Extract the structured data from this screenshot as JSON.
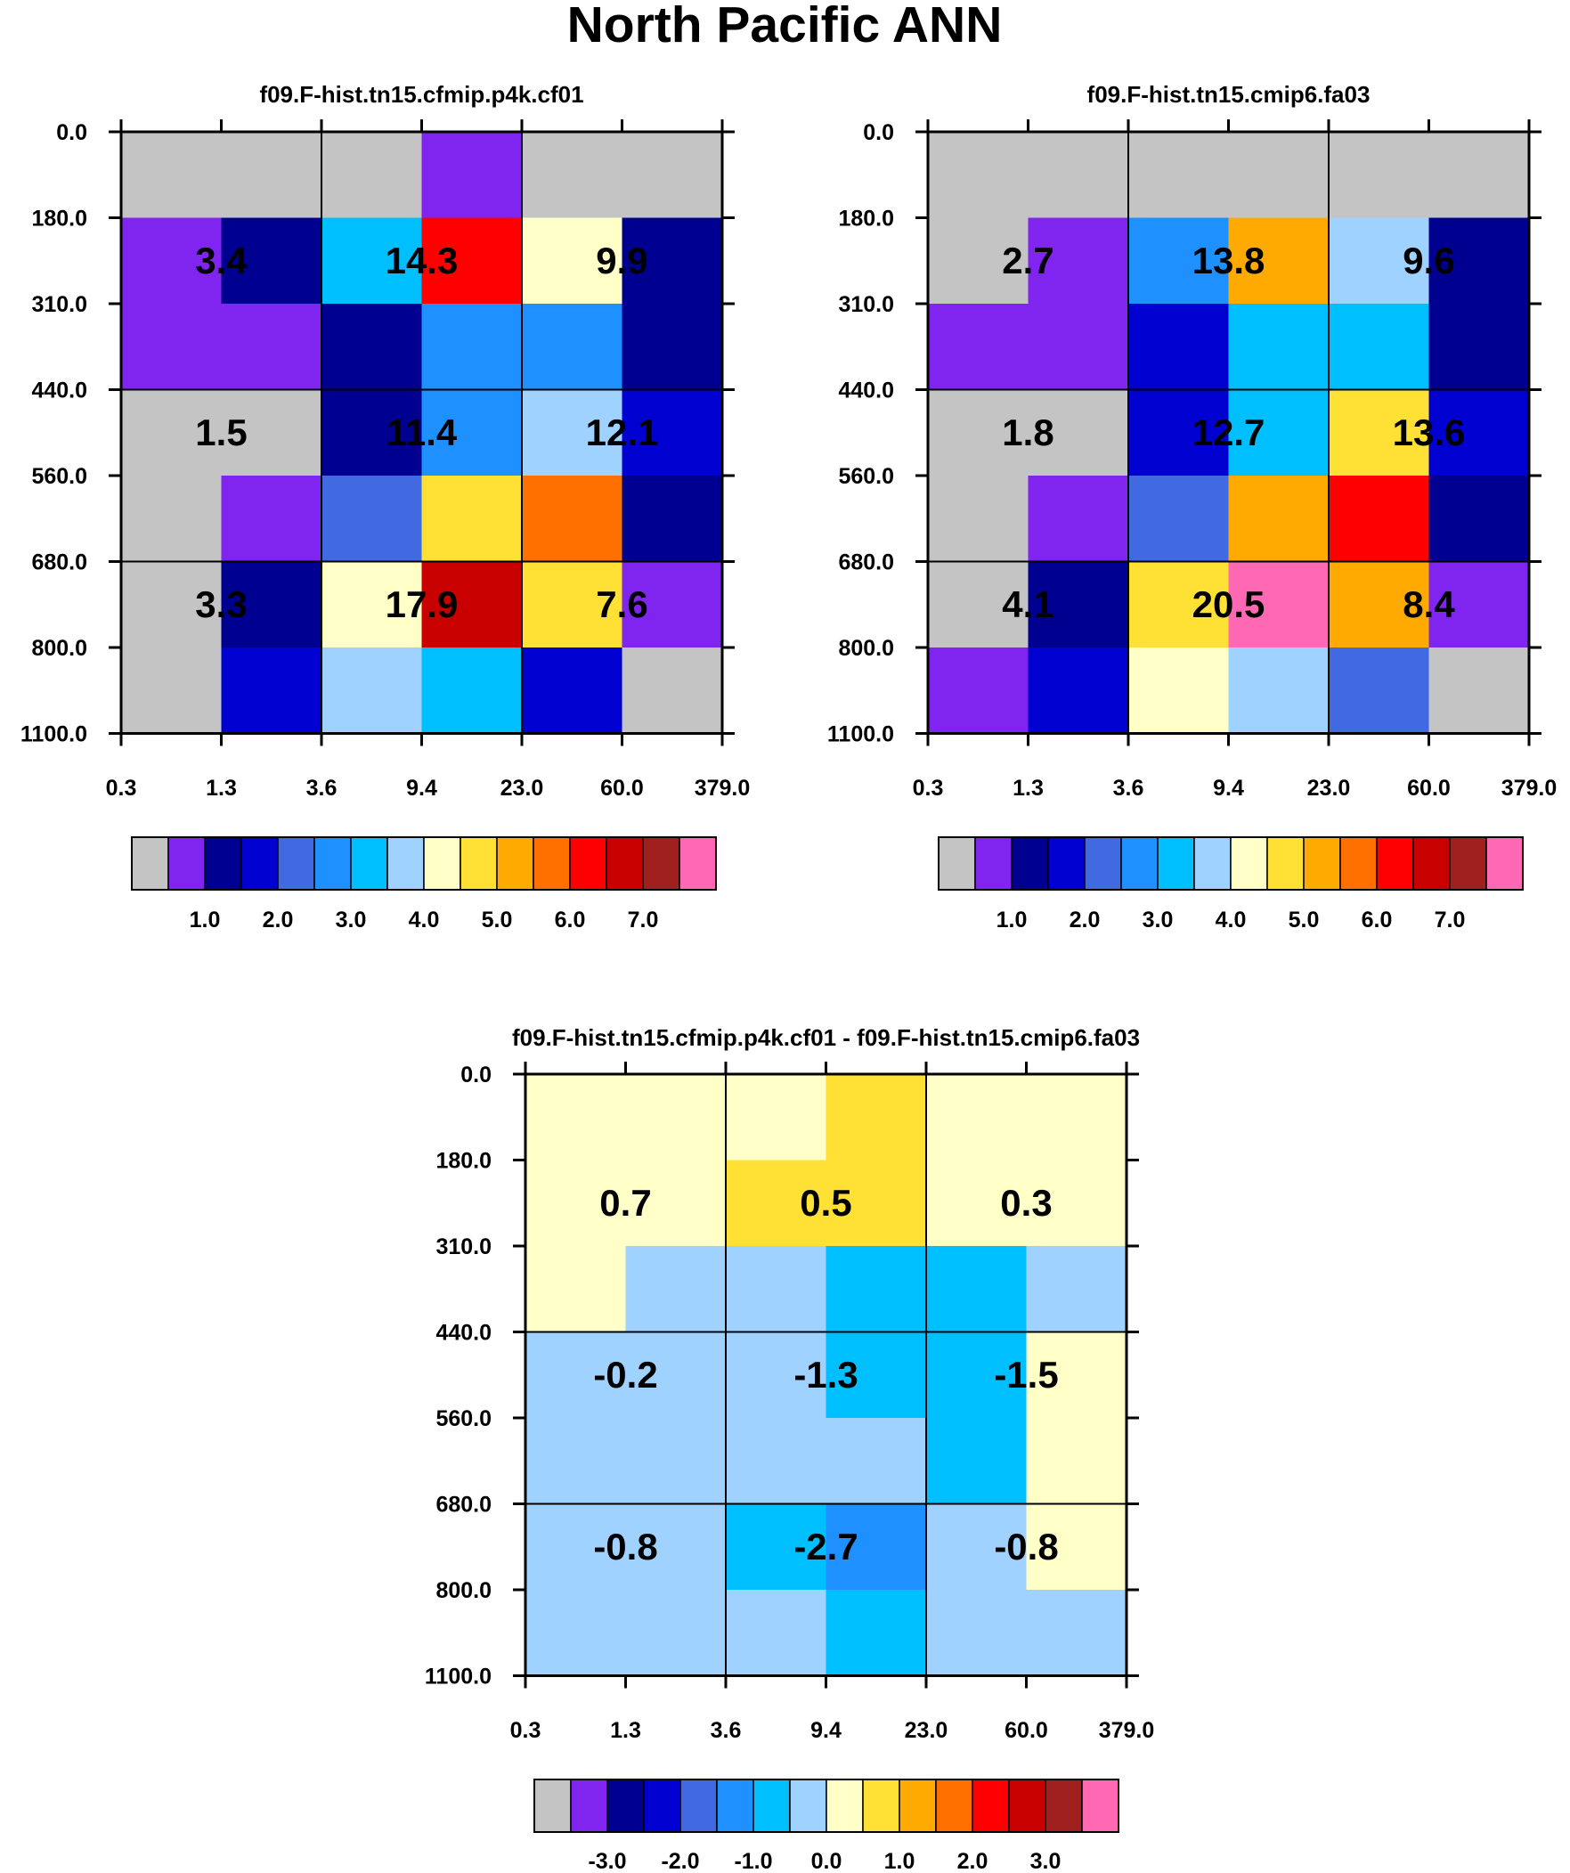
{
  "figure": {
    "title": "North Pacific ANN"
  },
  "colors": {
    "fill": [
      "#c4c4c4",
      "#8024f0",
      "#000090",
      "#0000d0",
      "#4169e1",
      "#1e90ff",
      "#00bfff",
      "#a0d2ff",
      "#ffffc8",
      "#ffe135",
      "#ffaa00",
      "#ff7000",
      "#ff0000",
      "#c80000",
      "#a02020",
      "#ff69b4"
    ],
    "axis": "#000000",
    "background": "#ffffff"
  },
  "chart_data": [
    {
      "type": "heatmap",
      "name": "panel-1",
      "title": "f09.F-hist.tn15.cfmip.p4k.cf01",
      "x_tick_labels": [
        "0.3",
        "1.3",
        "3.6",
        "9.4",
        "23.0",
        "60.0",
        "379.0"
      ],
      "y_tick_labels": [
        "0.0",
        "180.0",
        "310.0",
        "440.0",
        "560.0",
        "680.0",
        "800.0",
        "1100.0"
      ],
      "cell_color_index": [
        [
          0,
          0,
          0,
          1,
          0,
          0
        ],
        [
          1,
          2,
          6,
          12,
          8,
          2
        ],
        [
          1,
          1,
          2,
          5,
          5,
          2
        ],
        [
          0,
          0,
          2,
          5,
          7,
          3
        ],
        [
          0,
          1,
          4,
          9,
          11,
          2
        ],
        [
          0,
          2,
          8,
          13,
          9,
          1
        ],
        [
          0,
          3,
          7,
          6,
          3,
          0
        ]
      ],
      "annotations": [
        {
          "col": 0,
          "row": 1,
          "text": "3.4"
        },
        {
          "col": 1,
          "row": 1,
          "text": "14.3"
        },
        {
          "col": 2,
          "row": 1,
          "text": "9.9"
        },
        {
          "col": 0,
          "row": 2,
          "text": "1.5"
        },
        {
          "col": 1,
          "row": 2,
          "text": "11.4"
        },
        {
          "col": 2,
          "row": 2,
          "text": "12.1"
        },
        {
          "col": 0,
          "row": 3,
          "text": "3.3"
        },
        {
          "col": 1,
          "row": 3,
          "text": "17.9"
        },
        {
          "col": 2,
          "row": 3,
          "text": "7.6"
        }
      ],
      "colorbar_labels": [
        "1.0",
        "2.0",
        "3.0",
        "4.0",
        "5.0",
        "6.0",
        "7.0"
      ]
    },
    {
      "type": "heatmap",
      "name": "panel-2",
      "title": "f09.F-hist.tn15.cmip6.fa03",
      "x_tick_labels": [
        "0.3",
        "1.3",
        "3.6",
        "9.4",
        "23.0",
        "60.0",
        "379.0"
      ],
      "y_tick_labels": [
        "0.0",
        "180.0",
        "310.0",
        "440.0",
        "560.0",
        "680.0",
        "800.0",
        "1100.0"
      ],
      "cell_color_index": [
        [
          0,
          0,
          0,
          0,
          0,
          0
        ],
        [
          0,
          1,
          5,
          10,
          7,
          2
        ],
        [
          1,
          1,
          3,
          6,
          6,
          2
        ],
        [
          0,
          0,
          3,
          6,
          9,
          3
        ],
        [
          0,
          1,
          4,
          10,
          12,
          2
        ],
        [
          0,
          2,
          9,
          15,
          10,
          1
        ],
        [
          1,
          3,
          8,
          7,
          4,
          0
        ]
      ],
      "annotations": [
        {
          "col": 0,
          "row": 1,
          "text": "2.7"
        },
        {
          "col": 1,
          "row": 1,
          "text": "13.8"
        },
        {
          "col": 2,
          "row": 1,
          "text": "9.6"
        },
        {
          "col": 0,
          "row": 2,
          "text": "1.8"
        },
        {
          "col": 1,
          "row": 2,
          "text": "12.7"
        },
        {
          "col": 2,
          "row": 2,
          "text": "13.6"
        },
        {
          "col": 0,
          "row": 3,
          "text": "4.1"
        },
        {
          "col": 1,
          "row": 3,
          "text": "20.5"
        },
        {
          "col": 2,
          "row": 3,
          "text": "8.4"
        }
      ],
      "colorbar_labels": [
        "1.0",
        "2.0",
        "3.0",
        "4.0",
        "5.0",
        "6.0",
        "7.0"
      ]
    },
    {
      "type": "heatmap",
      "name": "panel-diff",
      "title": "f09.F-hist.tn15.cfmip.p4k.cf01 - f09.F-hist.tn15.cmip6.fa03",
      "x_tick_labels": [
        "0.3",
        "1.3",
        "3.6",
        "9.4",
        "23.0",
        "60.0",
        "379.0"
      ],
      "y_tick_labels": [
        "0.0",
        "180.0",
        "310.0",
        "440.0",
        "560.0",
        "680.0",
        "800.0",
        "1100.0"
      ],
      "cell_color_index": [
        [
          8,
          8,
          8,
          9,
          8,
          8
        ],
        [
          8,
          8,
          9,
          9,
          8,
          8
        ],
        [
          8,
          7,
          7,
          6,
          6,
          7
        ],
        [
          7,
          7,
          7,
          6,
          6,
          8
        ],
        [
          7,
          7,
          7,
          7,
          6,
          8
        ],
        [
          7,
          7,
          6,
          5,
          7,
          8
        ],
        [
          7,
          7,
          7,
          6,
          7,
          7
        ]
      ],
      "annotations": [
        {
          "col": 0,
          "row": 1,
          "text": "0.7"
        },
        {
          "col": 1,
          "row": 1,
          "text": "0.5"
        },
        {
          "col": 2,
          "row": 1,
          "text": "0.3"
        },
        {
          "col": 0,
          "row": 2,
          "text": "-0.2"
        },
        {
          "col": 1,
          "row": 2,
          "text": "-1.3"
        },
        {
          "col": 2,
          "row": 2,
          "text": "-1.5"
        },
        {
          "col": 0,
          "row": 3,
          "text": "-0.8"
        },
        {
          "col": 1,
          "row": 3,
          "text": "-2.7"
        },
        {
          "col": 2,
          "row": 3,
          "text": "-0.8"
        }
      ],
      "colorbar_labels": [
        "-3.0",
        "-2.0",
        "-1.0",
        "0.0",
        "1.0",
        "2.0",
        "3.0"
      ]
    }
  ]
}
